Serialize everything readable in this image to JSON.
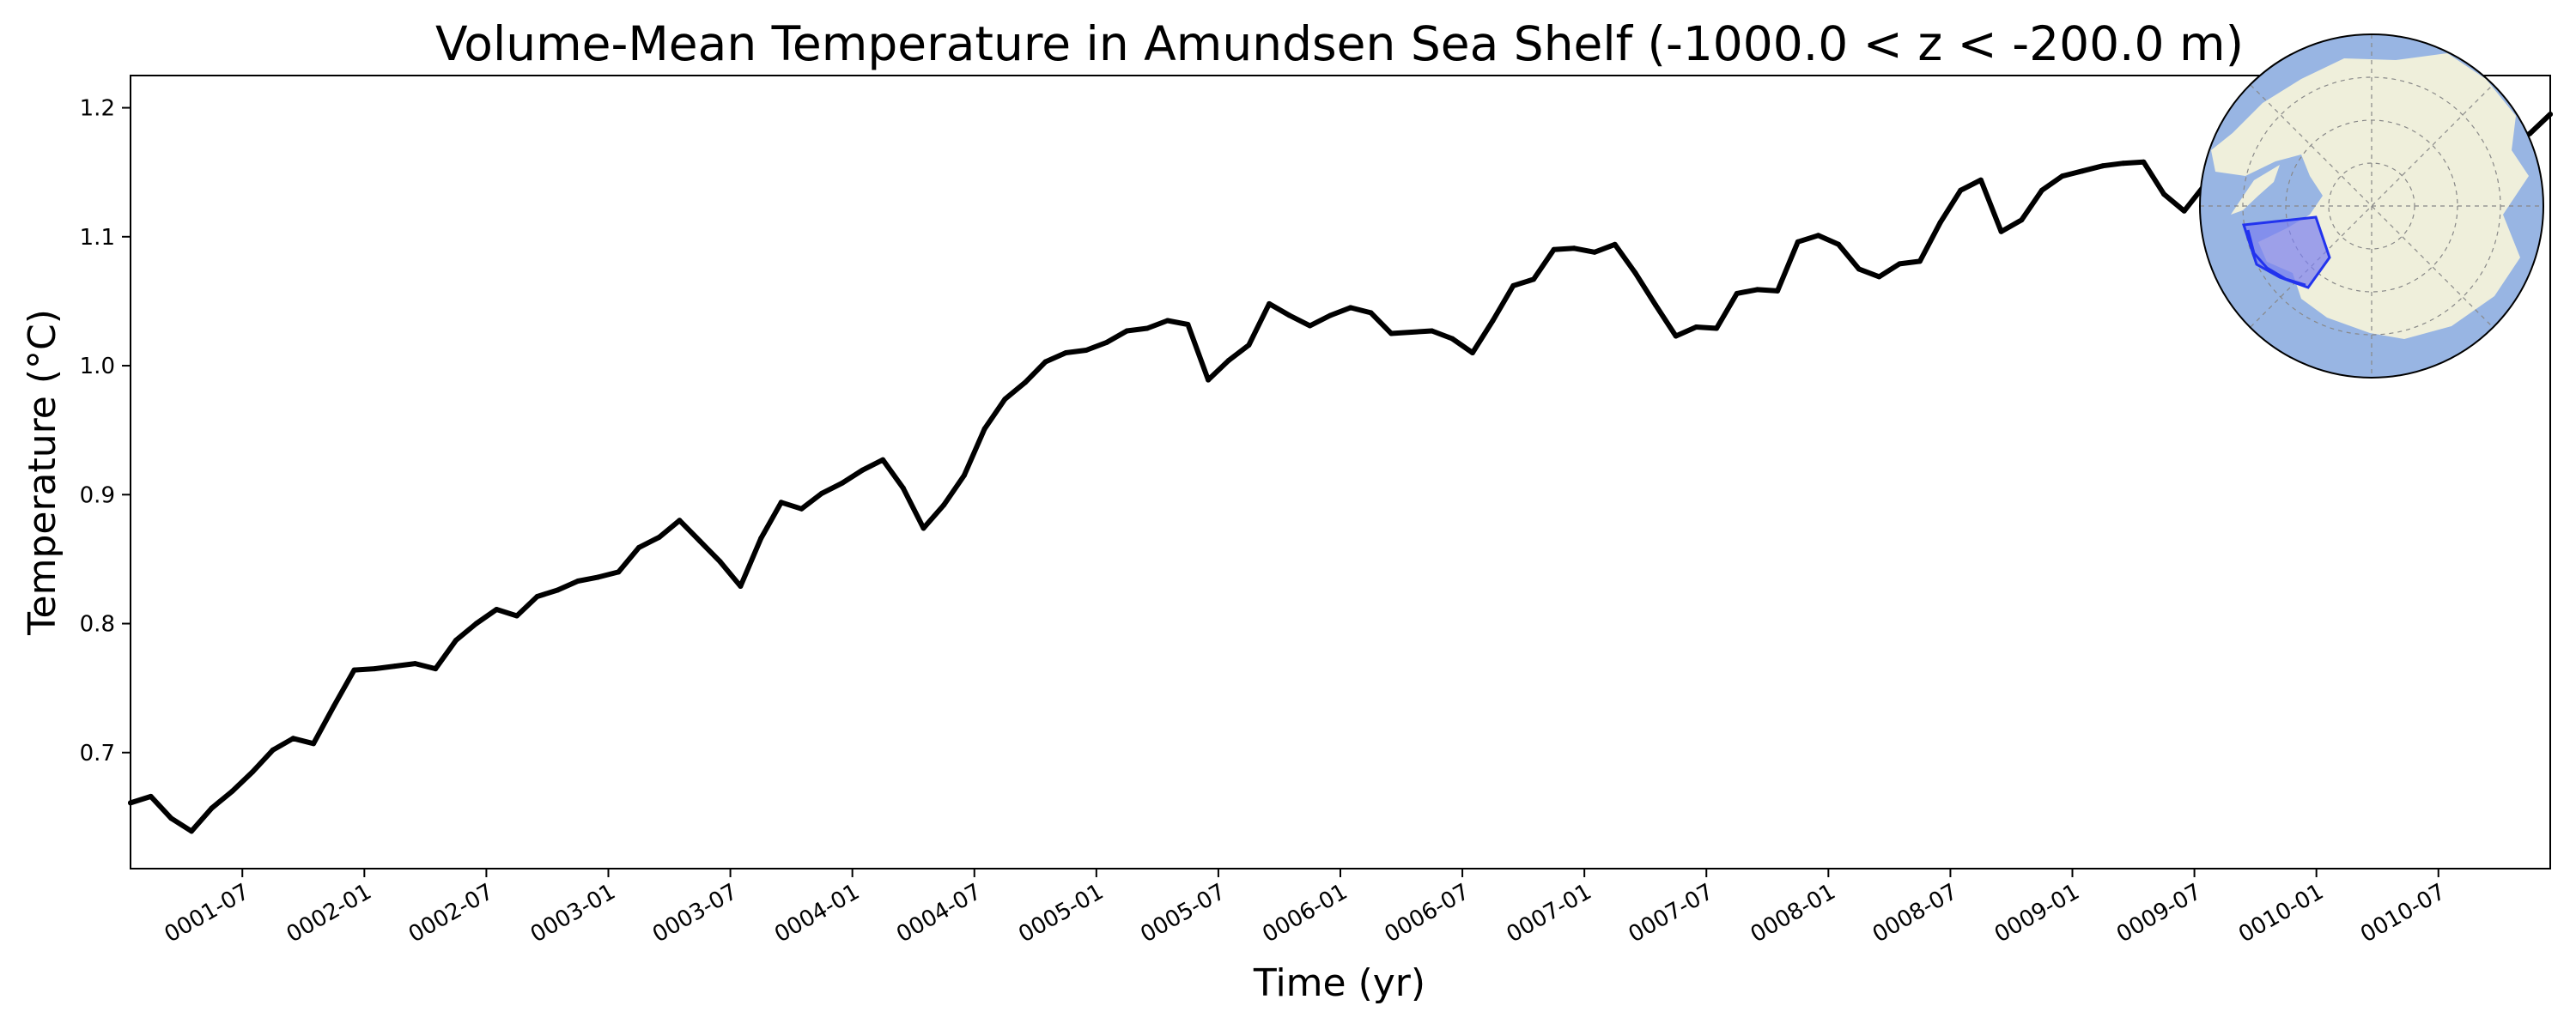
{
  "chart_data": {
    "type": "line",
    "title": "Volume-Mean Temperature in Amundsen Sea Shelf (-1000.0 < z < -200.0 m)",
    "xlabel": "Time (yr)",
    "ylabel": "Temperature (°C)",
    "ylim": [
      0.61,
      1.225
    ],
    "xlim": [
      "0001-01-16",
      "0010-12-16"
    ],
    "xticks": [
      "0001-07",
      "0002-01",
      "0002-07",
      "0003-01",
      "0003-07",
      "0004-01",
      "0004-07",
      "0005-01",
      "0005-07",
      "0006-01",
      "0006-07",
      "0007-01",
      "0007-07",
      "0008-01",
      "0008-07",
      "0009-01",
      "0009-07",
      "0010-01",
      "0010-07"
    ],
    "yticks": [
      "0.7",
      "0.8",
      "0.9",
      "1.0",
      "1.1",
      "1.2"
    ],
    "grid": false,
    "line_color": "#000000",
    "x_start": "0001-01",
    "x_interval": "monthly",
    "series": [
      {
        "values": [
          0.661,
          0.666,
          0.649,
          0.639,
          0.657,
          0.67,
          0.685,
          0.702,
          0.711,
          0.707,
          0.736,
          0.764,
          0.765,
          0.767,
          0.769,
          0.765,
          0.787,
          0.8,
          0.811,
          0.806,
          0.821,
          0.826,
          0.833,
          0.836,
          0.84,
          0.859,
          0.867,
          0.88,
          0.864,
          0.848,
          0.829,
          0.866,
          0.894,
          0.889,
          0.901,
          0.909,
          0.919,
          0.927,
          0.905,
          0.874,
          0.892,
          0.915,
          0.951,
          0.974,
          0.987,
          1.003,
          1.01,
          1.012,
          1.018,
          1.027,
          1.029,
          1.035,
          1.032,
          0.989,
          1.004,
          1.016,
          1.048,
          1.039,
          1.031,
          1.039,
          1.045,
          1.041,
          1.025,
          1.026,
          1.027,
          1.021,
          1.01,
          1.035,
          1.062,
          1.067,
          1.09,
          1.091,
          1.088,
          1.094,
          1.072,
          1.047,
          1.023,
          1.03,
          1.029,
          1.056,
          1.059,
          1.058,
          1.096,
          1.101,
          1.094,
          1.075,
          1.069,
          1.079,
          1.081,
          1.111,
          1.136,
          1.144,
          1.104,
          1.113,
          1.136,
          1.147,
          1.151,
          1.155,
          1.157,
          1.158,
          1.133,
          1.12,
          1.14,
          1.156,
          1.168,
          1.147,
          1.155,
          1.163,
          1.158,
          1.172,
          1.183,
          1.19,
          1.15,
          1.168,
          1.176,
          1.185,
          1.16,
          1.172,
          1.18,
          1.195
        ]
      }
    ],
    "inset_map": {
      "projection": "south-polar stereographic",
      "ocean_color": "#98b5e3",
      "land_color": "#efefdb",
      "region_fill_color": "#7b7ff0",
      "region_edge_color": "#2233ee"
    }
  }
}
